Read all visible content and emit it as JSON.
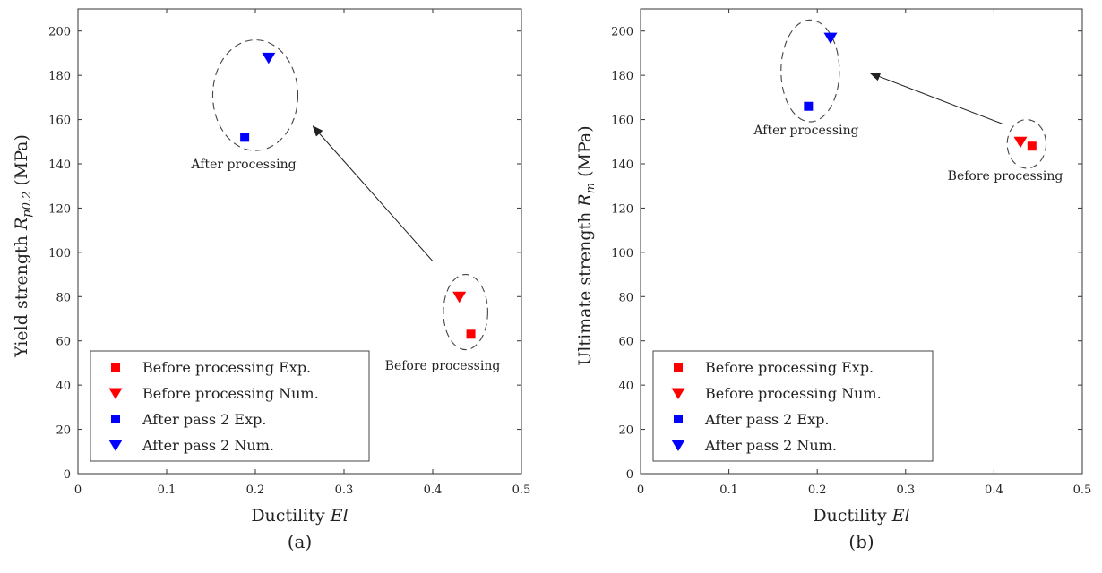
{
  "chart_data": [
    {
      "type": "scatter",
      "panel_label": "(a)",
      "xlabel_text": "Ductility ",
      "xlabel_math": "El",
      "ylabel_text": "Yield strength ",
      "ylabel_math": "R",
      "ylabel_sub": "p0.2",
      "ylabel_unit": " (MPa)",
      "xlim": [
        0,
        0.5
      ],
      "ylim": [
        0,
        210
      ],
      "xticks": [
        0,
        0.1,
        0.2,
        0.3,
        0.4,
        0.5
      ],
      "xtick_labels": [
        "0",
        "0.1",
        "0.2",
        "0.3",
        "0.4",
        "0.5"
      ],
      "yticks": [
        0,
        20,
        40,
        60,
        80,
        100,
        120,
        140,
        160,
        180,
        200
      ],
      "ytick_labels": [
        "0",
        "20",
        "40",
        "60",
        "80",
        "100",
        "120",
        "140",
        "160",
        "180",
        "200"
      ],
      "grid": false,
      "legend_position": "bottom-left",
      "series": [
        {
          "name": "Before processing Exp.",
          "marker": "square",
          "color": "#ff0000",
          "points": [
            {
              "x": 0.443,
              "y": 63
            }
          ]
        },
        {
          "name": "Before processing Num.",
          "marker": "triangle-down",
          "color": "#ff0000",
          "points": [
            {
              "x": 0.43,
              "y": 80
            }
          ]
        },
        {
          "name": "After pass 2 Exp.",
          "marker": "square",
          "color": "#0000ff",
          "points": [
            {
              "x": 0.188,
              "y": 152
            }
          ]
        },
        {
          "name": "After pass 2 Num.",
          "marker": "triangle-down",
          "color": "#0000ff",
          "points": [
            {
              "x": 0.215,
              "y": 188
            }
          ]
        }
      ],
      "groups": [
        {
          "label": "After processing",
          "center": {
            "x": 0.2,
            "y": 171
          },
          "radius": {
            "x": 0.048,
            "y": 25
          }
        },
        {
          "label": "Before processing",
          "center": {
            "x": 0.437,
            "y": 73
          },
          "radius": {
            "x": 0.025,
            "y": 17
          }
        }
      ],
      "arrow": {
        "from": {
          "x": 0.4,
          "y": 96
        },
        "to": {
          "x": 0.265,
          "y": 157
        }
      }
    },
    {
      "type": "scatter",
      "panel_label": "(b)",
      "xlabel_text": "Ductility ",
      "xlabel_math": "El",
      "ylabel_text": "Ultimate strength ",
      "ylabel_math": "R",
      "ylabel_sub": "m",
      "ylabel_unit": " (MPa)",
      "xlim": [
        0,
        0.5
      ],
      "ylim": [
        0,
        210
      ],
      "xticks": [
        0,
        0.1,
        0.2,
        0.3,
        0.4,
        0.5
      ],
      "xtick_labels": [
        "0",
        "0.1",
        "0.2",
        "0.3",
        "0.4",
        "0.5"
      ],
      "yticks": [
        0,
        20,
        40,
        60,
        80,
        100,
        120,
        140,
        160,
        180,
        200
      ],
      "ytick_labels": [
        "0",
        "20",
        "40",
        "60",
        "80",
        "100",
        "120",
        "140",
        "160",
        "180",
        "200"
      ],
      "grid": false,
      "legend_position": "bottom-left",
      "series": [
        {
          "name": "Before processing Exp.",
          "marker": "square",
          "color": "#ff0000",
          "points": [
            {
              "x": 0.443,
              "y": 148
            }
          ]
        },
        {
          "name": "Before processing Num.",
          "marker": "triangle-down",
          "color": "#ff0000",
          "points": [
            {
              "x": 0.43,
              "y": 150
            }
          ]
        },
        {
          "name": "After pass 2 Exp.",
          "marker": "square",
          "color": "#0000ff",
          "points": [
            {
              "x": 0.19,
              "y": 166
            }
          ]
        },
        {
          "name": "After pass 2 Num.",
          "marker": "triangle-down",
          "color": "#0000ff",
          "points": [
            {
              "x": 0.215,
              "y": 197
            }
          ]
        }
      ],
      "groups": [
        {
          "label": "After processing",
          "center": {
            "x": 0.192,
            "y": 182
          },
          "radius": {
            "x": 0.033,
            "y": 23
          }
        },
        {
          "label": "Before processing",
          "center": {
            "x": 0.437,
            "y": 149
          },
          "radius": {
            "x": 0.022,
            "y": 11
          }
        }
      ],
      "arrow": {
        "from": {
          "x": 0.41,
          "y": 158
        },
        "to": {
          "x": 0.26,
          "y": 181
        }
      }
    }
  ]
}
